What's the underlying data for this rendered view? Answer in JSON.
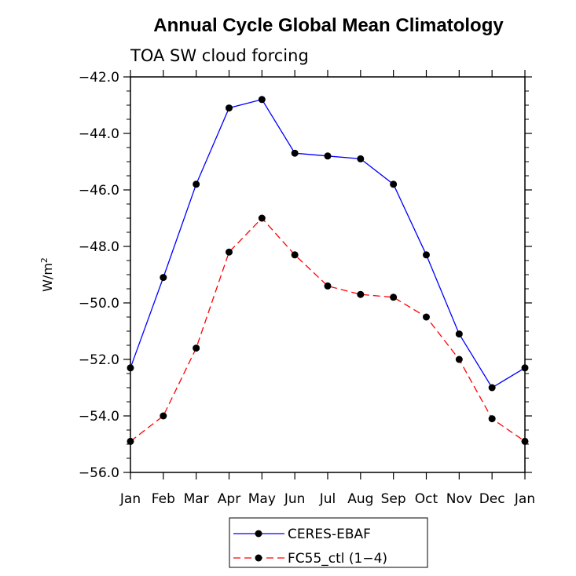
{
  "chart_data": {
    "type": "line",
    "title": "Annual Cycle Global Mean Climatology",
    "subtitle": "TOA SW cloud forcing",
    "xlabel": "",
    "ylabel": "W/m",
    "ylabel_superscript": "2",
    "ylim": [
      -56.0,
      -42.0
    ],
    "yticks": [
      -56.0,
      -54.0,
      -52.0,
      -50.0,
      -48.0,
      -46.0,
      -44.0,
      -42.0
    ],
    "ytick_labels": [
      "−56.0",
      "−54.0",
      "−52.0",
      "−50.0",
      "−48.0",
      "−46.0",
      "−44.0",
      "−42.0"
    ],
    "categories": [
      "Jan",
      "Feb",
      "Mar",
      "Apr",
      "May",
      "Jun",
      "Jul",
      "Aug",
      "Sep",
      "Oct",
      "Nov",
      "Dec",
      "Jan"
    ],
    "series": [
      {
        "name": "CERES-EBAF",
        "color": "#0000ff",
        "dash": "solid",
        "values": [
          -52.3,
          -49.1,
          -45.8,
          -43.1,
          -42.8,
          -44.7,
          -44.8,
          -44.9,
          -45.8,
          -48.3,
          -51.1,
          -53.0,
          -52.3
        ]
      },
      {
        "name": "FC55_ctl (1−4)",
        "color": "#ff0000",
        "dash": "dashed",
        "values": [
          -54.9,
          -54.0,
          -51.6,
          -48.2,
          -47.0,
          -48.3,
          -49.4,
          -49.7,
          -49.8,
          -50.5,
          -52.0,
          -54.1,
          -54.9
        ]
      }
    ]
  }
}
